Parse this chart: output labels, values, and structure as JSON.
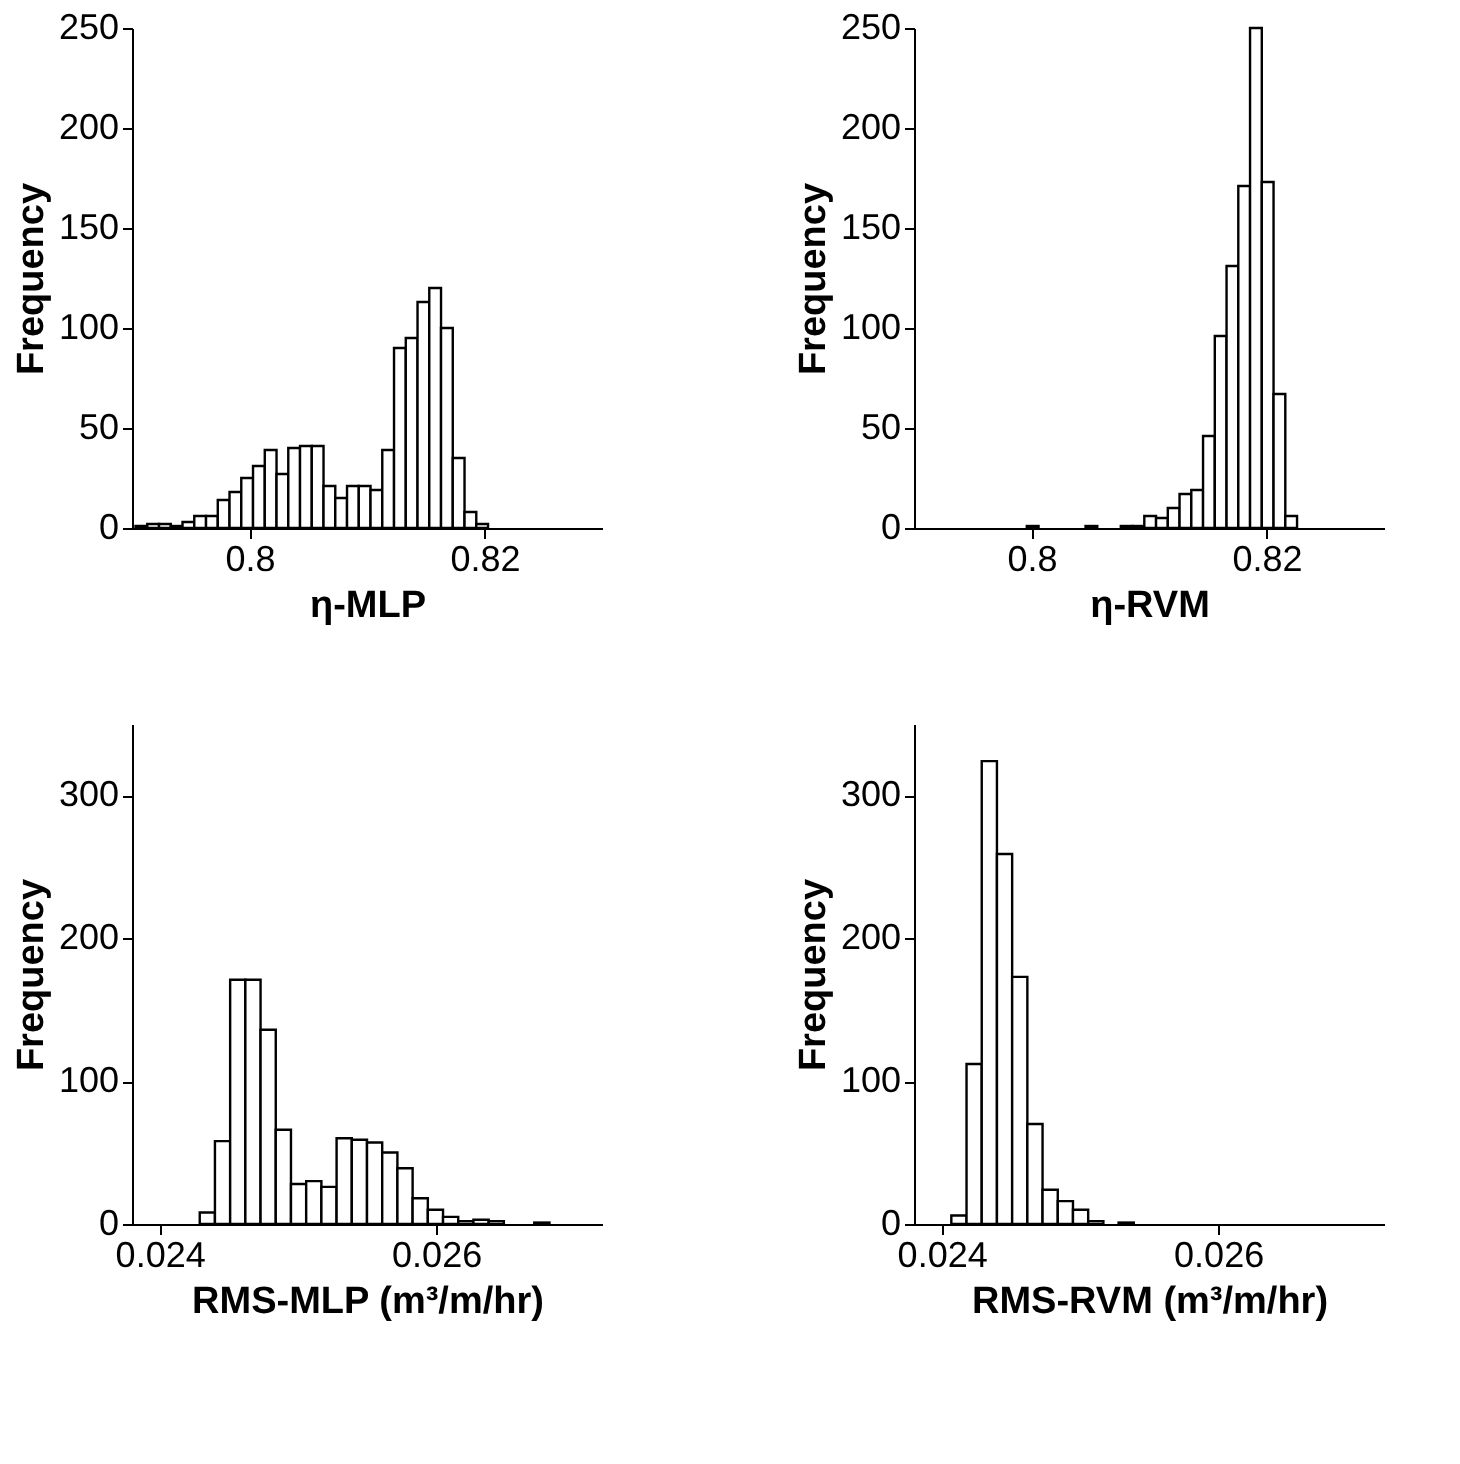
{
  "chart_data": [
    {
      "type": "histogram",
      "xlabel": "η-MLP",
      "ylabel": "Frequency",
      "color": "#ffffff",
      "grid": false,
      "xlim": [
        0.79,
        0.83
      ],
      "xticks": [
        0.8,
        0.82
      ],
      "ylim": [
        0,
        250
      ],
      "yticks": [
        0,
        50,
        100,
        150,
        200,
        250
      ],
      "bins": [
        0.7903,
        0.7913,
        0.7923,
        0.7933,
        0.7943,
        0.7953,
        0.7963,
        0.7973,
        0.7983,
        0.7993,
        0.8003,
        0.8013,
        0.8023,
        0.8033,
        0.8043,
        0.8053,
        0.8063,
        0.8073,
        0.8083,
        0.8093,
        0.8103,
        0.8113,
        0.8123,
        0.8133,
        0.8143,
        0.8153,
        0.8163,
        0.8173,
        0.8183,
        0.8193,
        0.8203
      ],
      "values": [
        1,
        2,
        2,
        1,
        3,
        6,
        6,
        14,
        18,
        25,
        31,
        39,
        27,
        40,
        41,
        41,
        21,
        15,
        21,
        21,
        19,
        39,
        90,
        95,
        113,
        120,
        100,
        35,
        8,
        2
      ]
    },
    {
      "type": "histogram",
      "xlabel": "η-RVM",
      "ylabel": "Frequency",
      "color": "#ffffff",
      "grid": false,
      "xlim": [
        0.79,
        0.83
      ],
      "xticks": [
        0.8,
        0.82
      ],
      "ylim": [
        0,
        250
      ],
      "yticks": [
        0,
        50,
        100,
        150,
        200,
        250
      ],
      "bins": [
        0.7996,
        0.8006,
        0.8016,
        0.8026,
        0.8036,
        0.8046,
        0.8056,
        0.8066,
        0.8076,
        0.8086,
        0.8096,
        0.8106,
        0.8116,
        0.8126,
        0.8136,
        0.8146,
        0.8156,
        0.8166,
        0.8176,
        0.8186,
        0.8196,
        0.8206,
        0.8216,
        0.8226
      ],
      "values": [
        1,
        0,
        0,
        0,
        0,
        1,
        0,
        0,
        1,
        1,
        6,
        5,
        10,
        17,
        19,
        46,
        96,
        131,
        171,
        250,
        173,
        67,
        6
      ]
    },
    {
      "type": "histogram",
      "xlabel": "RMS-MLP (m³/m/hr)",
      "ylabel": "Frequency",
      "color": "#ffffff",
      "grid": false,
      "xlim": [
        0.0238,
        0.0272
      ],
      "xticks": [
        0.024,
        0.026
      ],
      "ylim": [
        0,
        350
      ],
      "yticks": [
        0,
        100,
        200,
        300
      ],
      "bins": [
        0.02429,
        0.0244,
        0.02451,
        0.02462,
        0.02473,
        0.02484,
        0.02495,
        0.02506,
        0.02517,
        0.02528,
        0.02539,
        0.0255,
        0.02561,
        0.02572,
        0.02583,
        0.02594,
        0.02605,
        0.02616,
        0.02627,
        0.02638,
        0.02649,
        0.0266,
        0.02671,
        0.02682
      ],
      "values": [
        8,
        58,
        171,
        171,
        136,
        66,
        28,
        30,
        26,
        60,
        59,
        57,
        50,
        39,
        18,
        10,
        5,
        2,
        3,
        2,
        0,
        0,
        1
      ]
    },
    {
      "type": "histogram",
      "xlabel": "RMS-RVM (m³/m/hr)",
      "ylabel": "Frequency",
      "color": "#ffffff",
      "grid": false,
      "xlim": [
        0.0238,
        0.0272
      ],
      "xticks": [
        0.024,
        0.026
      ],
      "ylim": [
        0,
        350
      ],
      "yticks": [
        0,
        100,
        200,
        300
      ],
      "bins": [
        0.02407,
        0.02418,
        0.02429,
        0.0244,
        0.02451,
        0.02462,
        0.02473,
        0.02484,
        0.02495,
        0.02506,
        0.02517,
        0.02528,
        0.02539
      ],
      "values": [
        6,
        112,
        324,
        259,
        173,
        70,
        24,
        16,
        10,
        2,
        0,
        1
      ]
    }
  ]
}
